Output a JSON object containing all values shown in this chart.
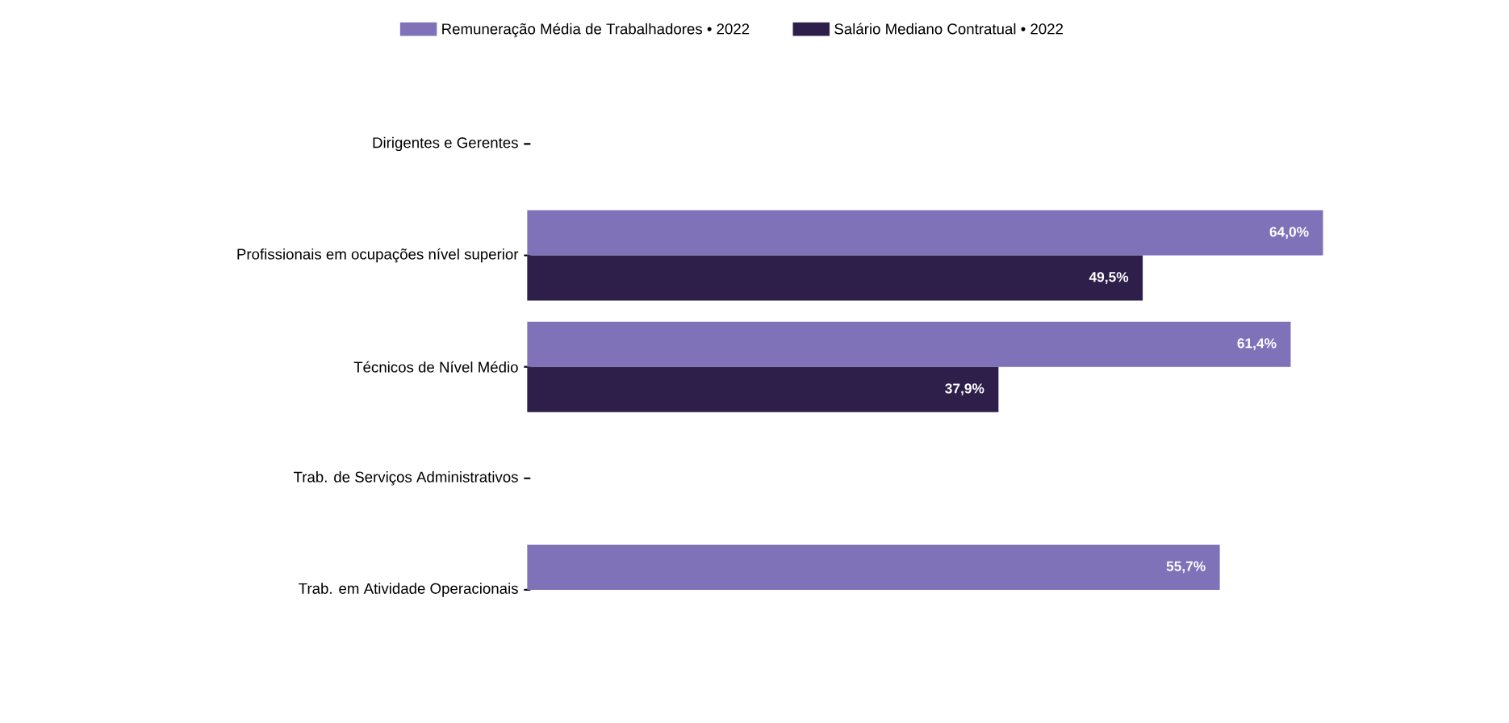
{
  "chart_data": {
    "type": "bar",
    "orientation": "horizontal",
    "categories": [
      "Dirigentes e Gerentes",
      "Profissionais em ocupações nível superior",
      "Técnicos de Nível Médio",
      "Trab. de Serviços Administrativos",
      "Trab. em Atividade Operacionais"
    ],
    "series": [
      {
        "name": "Remuneração Média de Trabalhadores • 2022",
        "color": "#7f72b9",
        "values": [
          null,
          64.0,
          61.4,
          null,
          55.7
        ],
        "value_labels": [
          null,
          "64,0%",
          "61,4%",
          null,
          "55,7%"
        ]
      },
      {
        "name": "Salário Mediano Contratual • 2022",
        "color": "#2d1f4a",
        "values": [
          null,
          49.5,
          37.9,
          null,
          null
        ],
        "value_labels": [
          null,
          "49,5%",
          "37,9%",
          null,
          null
        ]
      }
    ],
    "legend": "top"
  }
}
